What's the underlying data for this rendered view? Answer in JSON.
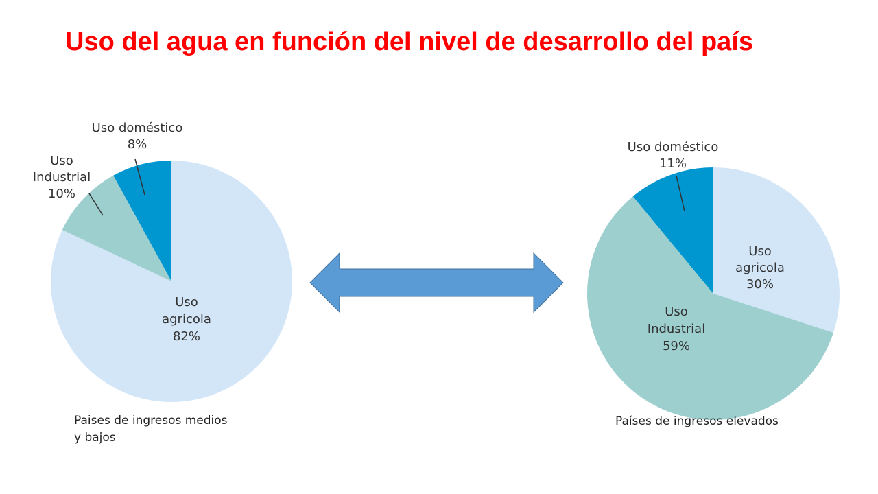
{
  "slide": {
    "title": "Uso del agua en función del nivel de desarrollo del país",
    "title_color": "#ff0000",
    "arrow_color": "#5b9bd5",
    "arrow_stroke": "#41719c"
  },
  "chart_data": [
    {
      "type": "pie",
      "caption_lines": [
        "Paises de ingresos medios",
        "y bajos"
      ],
      "slices": [
        {
          "label_lines": [
            "Uso",
            "agricola"
          ],
          "pct_text": "82%",
          "value": 82,
          "color": "#d3e6f8"
        },
        {
          "label_lines": [
            "Uso",
            "Industrial"
          ],
          "pct_text": "10%",
          "value": 10,
          "color": "#9ecfcf"
        },
        {
          "label_lines": [
            "Uso doméstico"
          ],
          "pct_text": "8%",
          "value": 8,
          "color": "#0096cf"
        }
      ]
    },
    {
      "type": "pie",
      "caption_lines": [
        "Países de ingresos elevados"
      ],
      "slices": [
        {
          "label_lines": [
            "Uso",
            "agricola"
          ],
          "pct_text": "30%",
          "value": 30,
          "color": "#d3e6f8"
        },
        {
          "label_lines": [
            "Uso",
            "Industrial"
          ],
          "pct_text": "59%",
          "value": 59,
          "color": "#9ecfcf"
        },
        {
          "label_lines": [
            "Uso doméstico"
          ],
          "pct_text": "11%",
          "value": 11,
          "color": "#0096cf"
        }
      ]
    }
  ]
}
